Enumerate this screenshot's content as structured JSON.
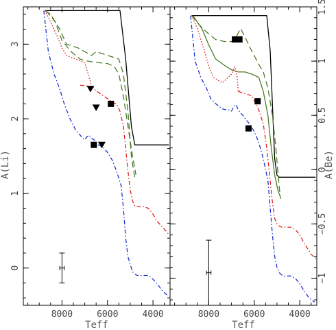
{
  "chart_data": [
    {
      "type": "line",
      "panel": "left",
      "xlabel": "Teff",
      "ylabel": "A(Li)",
      "xlim": [
        9700,
        3250
      ],
      "ylim": [
        -0.5,
        3.5
      ],
      "x_ticks": [
        8000,
        6000,
        4000
      ],
      "x_ticklabels": [
        "8000",
        "6000",
        "4000"
      ],
      "y_ticks": [
        0,
        1,
        2,
        3
      ],
      "y_ticklabels": [
        "0",
        "1",
        "2",
        "3"
      ],
      "y_tick_side": "left",
      "series": [
        {
          "style": "solid",
          "color": "#000000",
          "x": [
            8750,
            8600,
            7700,
            6000,
            5450,
            5200,
            4950,
            4800,
            4500,
            3300
          ],
          "y": [
            3.45,
            3.45,
            3.45,
            3.45,
            3.45,
            2.8,
            1.9,
            1.65,
            1.65,
            1.65
          ]
        },
        {
          "style": "long-dash",
          "color": "#4a7a25",
          "x": [
            8750,
            8500,
            8100,
            7800,
            7300,
            7000,
            6700,
            6500,
            6000,
            5500,
            5300,
            5100,
            4950,
            4800
          ],
          "y": [
            3.45,
            3.4,
            3.2,
            3.0,
            2.95,
            2.9,
            2.85,
            2.9,
            2.85,
            2.8,
            2.6,
            2.1,
            1.5,
            1.2
          ]
        },
        {
          "style": "long-dash",
          "color": "#4a7a25",
          "x": [
            8700,
            8300,
            8000,
            7600,
            7200,
            7000,
            6600,
            6300,
            6000,
            5700,
            5500,
            5300,
            5100,
            4900,
            4750
          ],
          "y": [
            3.45,
            3.3,
            3.05,
            2.9,
            2.8,
            2.78,
            2.76,
            2.75,
            2.74,
            2.7,
            2.6,
            2.3,
            1.9,
            1.5,
            1.25
          ]
        },
        {
          "style": "dotted",
          "color": "#e02020",
          "x": [
            8750,
            8500,
            8200,
            8000,
            7800,
            7400,
            7000,
            6850,
            6750,
            6700,
            6600
          ],
          "y": [
            3.45,
            3.3,
            3.1,
            2.95,
            2.85,
            2.8,
            2.75,
            2.6,
            2.5,
            2.4,
            2.42
          ]
        },
        {
          "style": "dash-dot",
          "color": "#e02020",
          "x": [
            7200,
            6900,
            6600,
            6300,
            6000,
            5800,
            5600,
            5450,
            5300,
            5200,
            5100,
            5000,
            4900,
            4800,
            4600,
            4400,
            4200,
            4000,
            3800,
            3500,
            3300
          ],
          "y": [
            2.45,
            2.44,
            2.4,
            2.33,
            2.27,
            2.22,
            2.2,
            2.1,
            1.9,
            1.6,
            1.3,
            1.05,
            0.9,
            0.83,
            0.82,
            0.82,
            0.8,
            0.72,
            0.62,
            0.52,
            0.45
          ]
        },
        {
          "style": "dash-dot",
          "color": "#1a2fd0",
          "x": [
            8800,
            8600,
            8350,
            8100,
            7900,
            7650,
            7400,
            7200,
            7100,
            7000,
            6900,
            6800,
            6700,
            6600,
            6500,
            6400,
            6200,
            6000,
            5800,
            5600,
            5400,
            5300,
            5200,
            5100,
            5000,
            4900,
            4800,
            4700,
            4600,
            4400,
            4200,
            4000,
            3800,
            3600,
            3350
          ],
          "y": [
            3.45,
            2.9,
            2.6,
            2.4,
            2.2,
            2.0,
            1.85,
            1.78,
            1.74,
            1.72,
            1.76,
            1.78,
            1.74,
            1.72,
            1.68,
            1.65,
            1.62,
            1.55,
            1.45,
            1.3,
            1.1,
            0.8,
            0.4,
            0.15,
            0.05,
            -0.05,
            -0.08,
            -0.1,
            -0.1,
            -0.1,
            -0.1,
            -0.15,
            -0.22,
            -0.3,
            -0.37
          ]
        },
        {
          "style": "scatter",
          "marker": "filled-triangle-down",
          "color": "#000000",
          "x": [
            6750,
            6500,
            6250
          ],
          "y": [
            2.4,
            2.15,
            1.65
          ]
        },
        {
          "style": "scatter",
          "marker": "filled-square",
          "color": "#000000",
          "x": [
            6600,
            5850
          ],
          "y": [
            1.65,
            2.2
          ]
        },
        {
          "style": "errorbar",
          "color": "#000000",
          "x": [
            8000
          ],
          "y": [
            0.0
          ],
          "yerr": [
            0.2
          ],
          "xerr": [
            100
          ]
        }
      ]
    },
    {
      "type": "line",
      "panel": "right",
      "xlabel": "Teff",
      "ylabel": "A(Be)",
      "xlim": [
        9700,
        3250
      ],
      "ylim": [
        -1.25,
        1.5
      ],
      "x_ticks": [
        8000,
        6000,
        4000
      ],
      "x_ticklabels": [
        "8000",
        "6000",
        "4000"
      ],
      "y_ticks": [
        -1,
        -0.5,
        0,
        0.5,
        1,
        1.5
      ],
      "y_ticklabels": [
        "−1",
        "−0.5",
        "0",
        "0.5",
        "1",
        "1.5"
      ],
      "y_tick_side": "right",
      "series": [
        {
          "style": "solid",
          "color": "#000000",
          "x": [
            8750,
            8000,
            6000,
            5450,
            5300,
            5200,
            5100,
            5000,
            4900,
            4600,
            3300
          ],
          "y": [
            1.42,
            1.42,
            1.42,
            1.42,
            1.1,
            0.6,
            0.1,
            -0.05,
            -0.07,
            -0.07,
            -0.07
          ]
        },
        {
          "style": "long-dash",
          "color": "#4a7a25",
          "x": [
            8750,
            8400,
            8000,
            7700,
            7300,
            7000,
            6800,
            6600,
            6400,
            6200,
            6000,
            5800,
            5600,
            5400,
            5200,
            5050,
            4950,
            4850
          ],
          "y": [
            1.42,
            1.33,
            1.25,
            1.2,
            1.18,
            1.18,
            1.22,
            1.3,
            1.22,
            1.13,
            1.05,
            0.97,
            0.9,
            0.75,
            0.5,
            0.2,
            -0.05,
            -0.27
          ]
        },
        {
          "style": "solid",
          "color": "#4a7a25",
          "x": [
            8700,
            8300,
            8000,
            7700,
            7300,
            7000,
            6700,
            6400,
            6100,
            5800,
            5600,
            5400,
            5250,
            5100,
            4950,
            4850
          ],
          "y": [
            1.42,
            1.3,
            1.15,
            1.02,
            0.96,
            0.92,
            0.9,
            0.9,
            0.88,
            0.85,
            0.72,
            0.5,
            0.2,
            -0.05,
            -0.2,
            -0.25
          ]
        },
        {
          "style": "dotted",
          "color": "#e02020",
          "x": [
            8750,
            8500,
            8200,
            8000,
            7800,
            7400,
            7000,
            6850,
            6750,
            6700,
            6650
          ],
          "y": [
            1.42,
            1.3,
            1.1,
            0.95,
            0.85,
            0.8,
            0.88,
            0.95,
            0.85,
            0.72,
            0.73
          ]
        },
        {
          "style": "dash-dot",
          "color": "#e02020",
          "x": [
            6700,
            6400,
            6100,
            5800,
            5600,
            5450,
            5300,
            5200,
            5100,
            5000,
            4900,
            4800,
            4600,
            4400,
            4200,
            4000,
            3800,
            3500,
            3300
          ],
          "y": [
            0.72,
            0.7,
            0.68,
            0.55,
            0.42,
            0.2,
            -0.1,
            -0.3,
            -0.45,
            -0.5,
            -0.52,
            -0.53,
            -0.53,
            -0.53,
            -0.55,
            -0.6,
            -0.68,
            -0.78,
            -0.82
          ]
        },
        {
          "style": "dash-dot",
          "color": "#1a2fd0",
          "x": [
            8800,
            8600,
            8350,
            8100,
            7900,
            7650,
            7400,
            7200,
            7100,
            7000,
            6900,
            6800,
            6700,
            6600,
            6500,
            6400,
            6200,
            6000,
            5800,
            5600,
            5400,
            5300,
            5200,
            5100,
            5000,
            4900,
            4800,
            4700,
            4600,
            4400,
            4200,
            4000,
            3800,
            3600,
            3350
          ],
          "y": [
            1.42,
            1.0,
            0.85,
            0.75,
            0.65,
            0.6,
            0.56,
            0.55,
            0.55,
            0.54,
            0.58,
            0.6,
            0.55,
            0.52,
            0.5,
            0.47,
            0.42,
            0.35,
            0.25,
            0.1,
            -0.1,
            -0.35,
            -0.6,
            -0.8,
            -0.9,
            -0.95,
            -0.97,
            -0.98,
            -0.98,
            -0.98,
            -1.0,
            -1.05,
            -1.12,
            -1.18,
            -1.22
          ]
        },
        {
          "style": "scatter",
          "marker": "filled-square",
          "color": "#000000",
          "x": [
            6850,
            6650,
            5850,
            6250
          ],
          "y": [
            1.2,
            1.2,
            0.63,
            0.38
          ]
        },
        {
          "style": "errorbar",
          "color": "#000000",
          "x": [
            8000
          ],
          "y": [
            -0.95
          ],
          "yerr": [
            0.3
          ],
          "xerr": [
            100
          ]
        }
      ]
    }
  ]
}
